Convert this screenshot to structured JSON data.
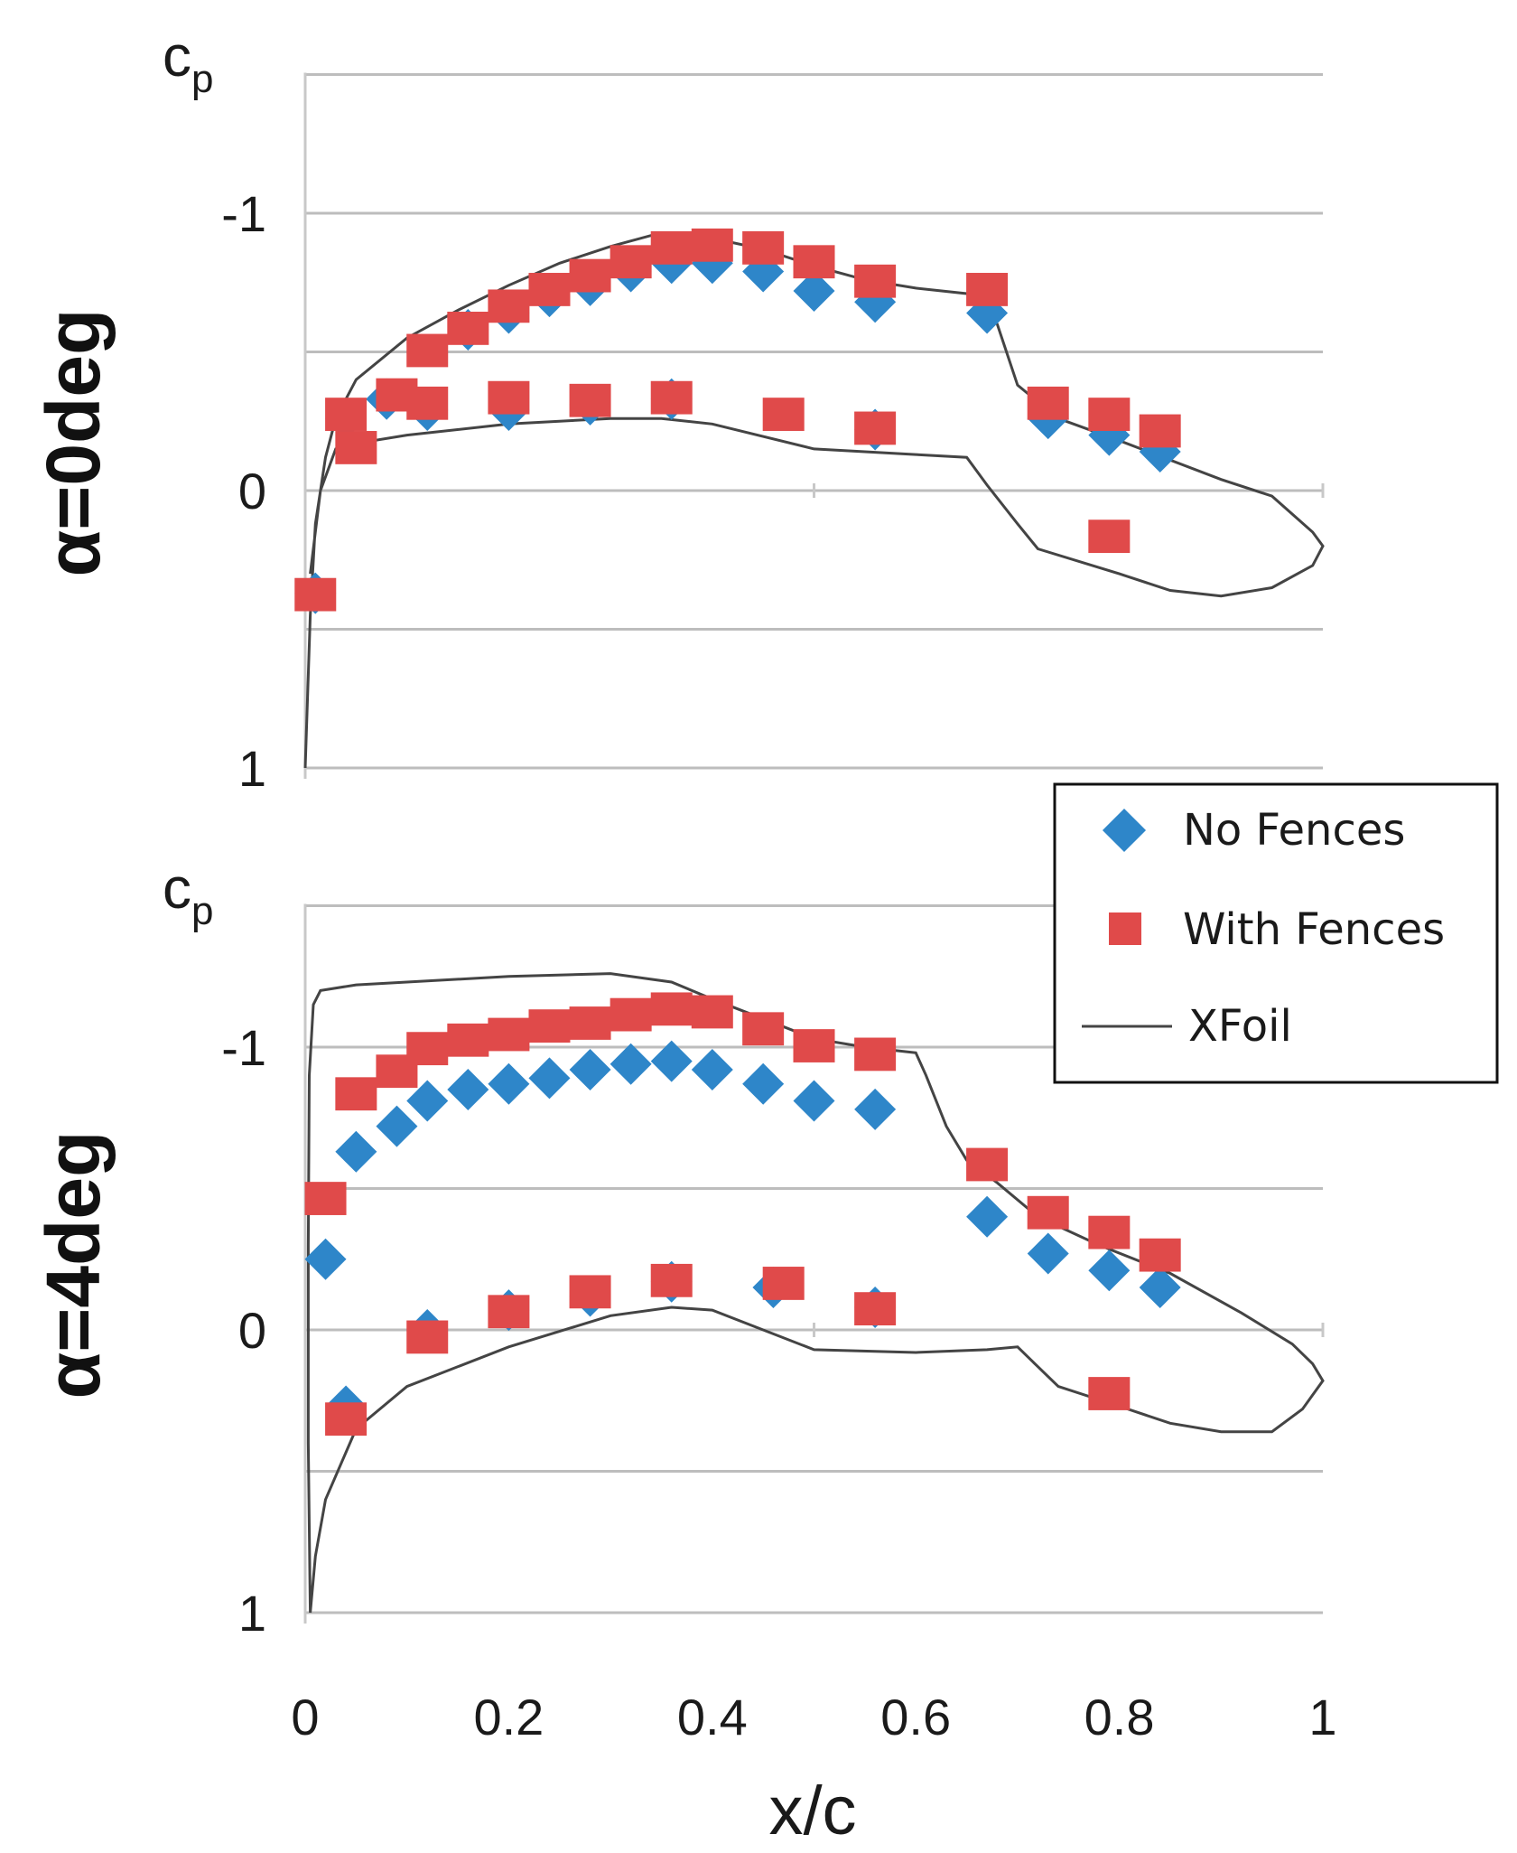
{
  "chart_data": [
    {
      "type": "scatter",
      "panel_label": "α=0deg",
      "ylabel_main": "c",
      "ylabel_sub": "p",
      "y_inverted": true,
      "ylim": [
        1,
        -1.5
      ],
      "xlim": [
        0,
        1
      ],
      "y_ticks": [
        "-1",
        "0",
        "1"
      ],
      "y_tick_values": [
        -1,
        0,
        1
      ],
      "grid": true,
      "series": [
        {
          "name": "No Fences",
          "color": "#2e86c9",
          "marker": "diamond",
          "points": [
            [
              0.01,
              0.37
            ],
            [
              0.04,
              -0.26
            ],
            [
              0.08,
              -0.33
            ],
            [
              0.12,
              -0.29
            ],
            [
              0.16,
              -0.58
            ],
            [
              0.2,
              -0.29
            ],
            [
              0.2,
              -0.64
            ],
            [
              0.24,
              -0.7
            ],
            [
              0.28,
              -0.74
            ],
            [
              0.28,
              -0.31
            ],
            [
              0.32,
              -0.79
            ],
            [
              0.36,
              -0.82
            ],
            [
              0.36,
              -0.33
            ],
            [
              0.4,
              -0.82
            ],
            [
              0.45,
              -0.79
            ],
            [
              0.5,
              -0.72
            ],
            [
              0.56,
              -0.68
            ],
            [
              0.56,
              -0.22
            ],
            [
              0.67,
              -0.64
            ],
            [
              0.73,
              -0.26
            ],
            [
              0.79,
              -0.2
            ],
            [
              0.84,
              -0.14
            ]
          ]
        },
        {
          "name": "With Fences",
          "color": "#e04a4a",
          "marker": "square",
          "points": [
            [
              0.01,
              0.39
            ],
            [
              0.04,
              -0.26
            ],
            [
              0.05,
              -0.14
            ],
            [
              0.09,
              -0.33
            ],
            [
              0.12,
              -0.3
            ],
            [
              0.12,
              -0.49
            ],
            [
              0.16,
              -0.57
            ],
            [
              0.2,
              -0.32
            ],
            [
              0.2,
              -0.65
            ],
            [
              0.24,
              -0.71
            ],
            [
              0.28,
              -0.76
            ],
            [
              0.28,
              -0.31
            ],
            [
              0.32,
              -0.81
            ],
            [
              0.36,
              -0.86
            ],
            [
              0.36,
              -0.32
            ],
            [
              0.4,
              -0.87
            ],
            [
              0.45,
              -0.86
            ],
            [
              0.47,
              -0.26
            ],
            [
              0.5,
              -0.81
            ],
            [
              0.56,
              -0.74
            ],
            [
              0.56,
              -0.21
            ],
            [
              0.67,
              -0.71
            ],
            [
              0.73,
              -0.3
            ],
            [
              0.79,
              -0.26
            ],
            [
              0.79,
              0.18
            ],
            [
              0.84,
              -0.2
            ]
          ]
        },
        {
          "name": "XFoil",
          "color": "#444444",
          "marker": "line",
          "points": [
            [
              0.0,
              1.0
            ],
            [
              0.005,
              0.45
            ],
            [
              0.01,
              0.12
            ],
            [
              0.02,
              -0.12
            ],
            [
              0.03,
              -0.26
            ],
            [
              0.05,
              -0.4
            ],
            [
              0.1,
              -0.55
            ],
            [
              0.15,
              -0.65
            ],
            [
              0.2,
              -0.74
            ],
            [
              0.25,
              -0.82
            ],
            [
              0.3,
              -0.88
            ],
            [
              0.34,
              -0.92
            ],
            [
              0.4,
              -0.91
            ],
            [
              0.45,
              -0.87
            ],
            [
              0.5,
              -0.81
            ],
            [
              0.55,
              -0.76
            ],
            [
              0.6,
              -0.73
            ],
            [
              0.65,
              -0.71
            ],
            [
              0.66,
              -0.69
            ],
            [
              0.68,
              -0.6
            ],
            [
              0.7,
              -0.38
            ],
            [
              0.74,
              -0.26
            ],
            [
              0.8,
              -0.18
            ],
            [
              0.9,
              -0.04
            ],
            [
              0.95,
              0.02
            ],
            [
              0.99,
              0.15
            ],
            [
              1.0,
              0.2
            ],
            [
              0.99,
              0.27
            ],
            [
              0.95,
              0.35
            ],
            [
              0.9,
              0.38
            ],
            [
              0.85,
              0.36
            ],
            [
              0.8,
              0.3
            ],
            [
              0.72,
              0.21
            ],
            [
              0.7,
              0.12
            ],
            [
              0.67,
              -0.02
            ],
            [
              0.65,
              -0.12
            ],
            [
              0.6,
              -0.13
            ],
            [
              0.5,
              -0.15
            ],
            [
              0.4,
              -0.24
            ],
            [
              0.35,
              -0.26
            ],
            [
              0.3,
              -0.26
            ],
            [
              0.2,
              -0.24
            ],
            [
              0.1,
              -0.2
            ],
            [
              0.05,
              -0.17
            ],
            [
              0.03,
              -0.15
            ],
            [
              0.015,
              0.0
            ],
            [
              0.005,
              0.3
            ]
          ]
        }
      ]
    },
    {
      "type": "scatter",
      "panel_label": "α=4deg",
      "ylabel_main": "c",
      "ylabel_sub": "p",
      "y_inverted": true,
      "ylim": [
        1,
        -1.5
      ],
      "xlim": [
        0,
        1
      ],
      "y_ticks": [
        "-1",
        "0",
        "1"
      ],
      "y_tick_values": [
        -1,
        0,
        1
      ],
      "grid": true,
      "series": [
        {
          "name": "No Fences",
          "color": "#2e86c9",
          "marker": "diamond",
          "points": [
            [
              0.02,
              -0.25
            ],
            [
              0.04,
              0.27
            ],
            [
              0.05,
              -0.63
            ],
            [
              0.09,
              -0.72
            ],
            [
              0.12,
              0.0
            ],
            [
              0.12,
              -0.81
            ],
            [
              0.16,
              -0.85
            ],
            [
              0.2,
              -0.07
            ],
            [
              0.2,
              -0.87
            ],
            [
              0.24,
              -0.89
            ],
            [
              0.28,
              -0.92
            ],
            [
              0.28,
              -0.12
            ],
            [
              0.32,
              -0.94
            ],
            [
              0.36,
              -0.95
            ],
            [
              0.36,
              -0.17
            ],
            [
              0.4,
              -0.92
            ],
            [
              0.45,
              -0.87
            ],
            [
              0.46,
              -0.15
            ],
            [
              0.5,
              -0.81
            ],
            [
              0.56,
              -0.78
            ],
            [
              0.56,
              -0.08
            ],
            [
              0.67,
              -0.4
            ],
            [
              0.73,
              -0.27
            ],
            [
              0.79,
              -0.21
            ],
            [
              0.84,
              -0.15
            ]
          ]
        },
        {
          "name": "With Fences",
          "color": "#e04a4a",
          "marker": "square",
          "points": [
            [
              0.02,
              -0.45
            ],
            [
              0.04,
              0.33
            ],
            [
              0.05,
              -0.82
            ],
            [
              0.09,
              -0.9
            ],
            [
              0.12,
              0.04
            ],
            [
              0.12,
              -0.98
            ],
            [
              0.16,
              -1.01
            ],
            [
              0.2,
              -0.05
            ],
            [
              0.2,
              -1.03
            ],
            [
              0.24,
              -1.06
            ],
            [
              0.28,
              -1.07
            ],
            [
              0.28,
              -0.12
            ],
            [
              0.32,
              -1.1
            ],
            [
              0.36,
              -1.12
            ],
            [
              0.36,
              -0.16
            ],
            [
              0.4,
              -1.11
            ],
            [
              0.45,
              -1.05
            ],
            [
              0.47,
              -0.15
            ],
            [
              0.5,
              -0.99
            ],
            [
              0.56,
              -0.96
            ],
            [
              0.56,
              -0.06
            ],
            [
              0.67,
              -0.57
            ],
            [
              0.73,
              -0.4
            ],
            [
              0.79,
              -0.33
            ],
            [
              0.79,
              0.24
            ],
            [
              0.84,
              -0.25
            ]
          ]
        },
        {
          "name": "XFoil",
          "color": "#444444",
          "marker": "line",
          "points": [
            [
              0.005,
              1.0
            ],
            [
              0.003,
              0.4
            ],
            [
              0.003,
              -0.3
            ],
            [
              0.004,
              -0.9
            ],
            [
              0.008,
              -1.15
            ],
            [
              0.015,
              -1.2
            ],
            [
              0.05,
              -1.22
            ],
            [
              0.1,
              -1.23
            ],
            [
              0.2,
              -1.25
            ],
            [
              0.3,
              -1.26
            ],
            [
              0.36,
              -1.23
            ],
            [
              0.4,
              -1.17
            ],
            [
              0.45,
              -1.1
            ],
            [
              0.5,
              -1.03
            ],
            [
              0.55,
              -1.0
            ],
            [
              0.6,
              -0.98
            ],
            [
              0.61,
              -0.9
            ],
            [
              0.63,
              -0.72
            ],
            [
              0.65,
              -0.6
            ],
            [
              0.68,
              -0.52
            ],
            [
              0.72,
              -0.4
            ],
            [
              0.78,
              -0.3
            ],
            [
              0.85,
              -0.2
            ],
            [
              0.92,
              -0.06
            ],
            [
              0.97,
              0.05
            ],
            [
              0.99,
              0.12
            ],
            [
              1.0,
              0.18
            ],
            [
              0.98,
              0.28
            ],
            [
              0.95,
              0.36
            ],
            [
              0.9,
              0.36
            ],
            [
              0.85,
              0.33
            ],
            [
              0.8,
              0.27
            ],
            [
              0.74,
              0.2
            ],
            [
              0.72,
              0.13
            ],
            [
              0.7,
              0.06
            ],
            [
              0.67,
              0.07
            ],
            [
              0.6,
              0.08
            ],
            [
              0.5,
              0.07
            ],
            [
              0.4,
              -0.07
            ],
            [
              0.36,
              -0.08
            ],
            [
              0.3,
              -0.05
            ],
            [
              0.2,
              0.06
            ],
            [
              0.1,
              0.2
            ],
            [
              0.05,
              0.35
            ],
            [
              0.02,
              0.6
            ],
            [
              0.01,
              0.8
            ],
            [
              0.005,
              1.0
            ]
          ]
        }
      ]
    }
  ],
  "legend": {
    "entries": [
      {
        "label": "No Fences",
        "color": "#2e86c9",
        "marker": "diamond"
      },
      {
        "label": "With Fences",
        "color": "#e04a4a",
        "marker": "square"
      },
      {
        "label": "XFoil",
        "color": "#444444",
        "marker": "line"
      }
    ]
  },
  "x_axis": {
    "label": "x/c",
    "ticks": [
      "0",
      "0.2",
      "0.4",
      "0.6",
      "0.8",
      "1"
    ],
    "tick_values": [
      0,
      0.2,
      0.4,
      0.6,
      0.8,
      1
    ]
  }
}
